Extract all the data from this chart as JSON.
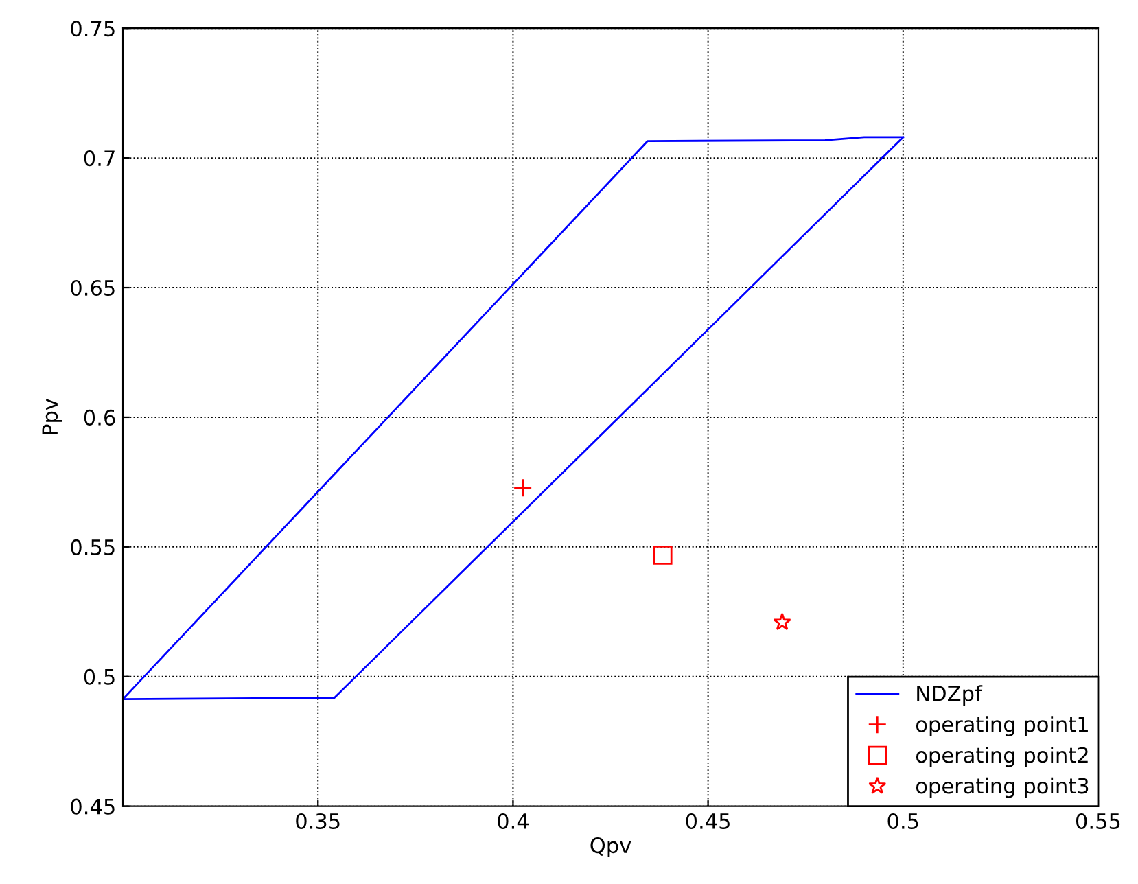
{
  "chart_data": {
    "type": "line",
    "xlabel": "Qpv",
    "ylabel": "Ppv",
    "xlim": [
      0.3,
      0.55
    ],
    "xticks": [
      0.35,
      0.4,
      0.45,
      0.5,
      0.55
    ],
    "ylim": [
      0.45,
      0.75
    ],
    "yticks": [
      0.45,
      0.5,
      0.55,
      0.6,
      0.65,
      0.7,
      0.75
    ],
    "grid": true,
    "legend": "bottom right",
    "series": [
      {
        "name": "NDZpf",
        "color": "#0000ff",
        "marker": "none",
        "x": [
          0.3,
          0.3542,
          0.5
        ],
        "values": [
          0.4913,
          0.4918,
          0.708
        ]
      },
      {
        "color": "#0000ff",
        "marker": "none",
        "x": [
          0.3,
          0.4345,
          0.48,
          0.49,
          0.5
        ],
        "values": [
          0.4913,
          0.7065,
          0.7068,
          0.708,
          0.708
        ]
      },
      {
        "name": "operating point1",
        "type": "scatter",
        "color": "#ff0000",
        "marker": "cross",
        "x": [
          0.4025
        ],
        "values": [
          0.5728
        ]
      },
      {
        "name": "operating point2",
        "type": "scatter",
        "color": "#ff0000",
        "marker": "square",
        "x": [
          0.4384
        ],
        "values": [
          0.5468
        ]
      },
      {
        "name": "operating point3",
        "type": "scatter",
        "color": "#ff0000",
        "marker": "star",
        "x": [
          0.469
        ],
        "values": [
          0.5209
        ]
      }
    ]
  }
}
